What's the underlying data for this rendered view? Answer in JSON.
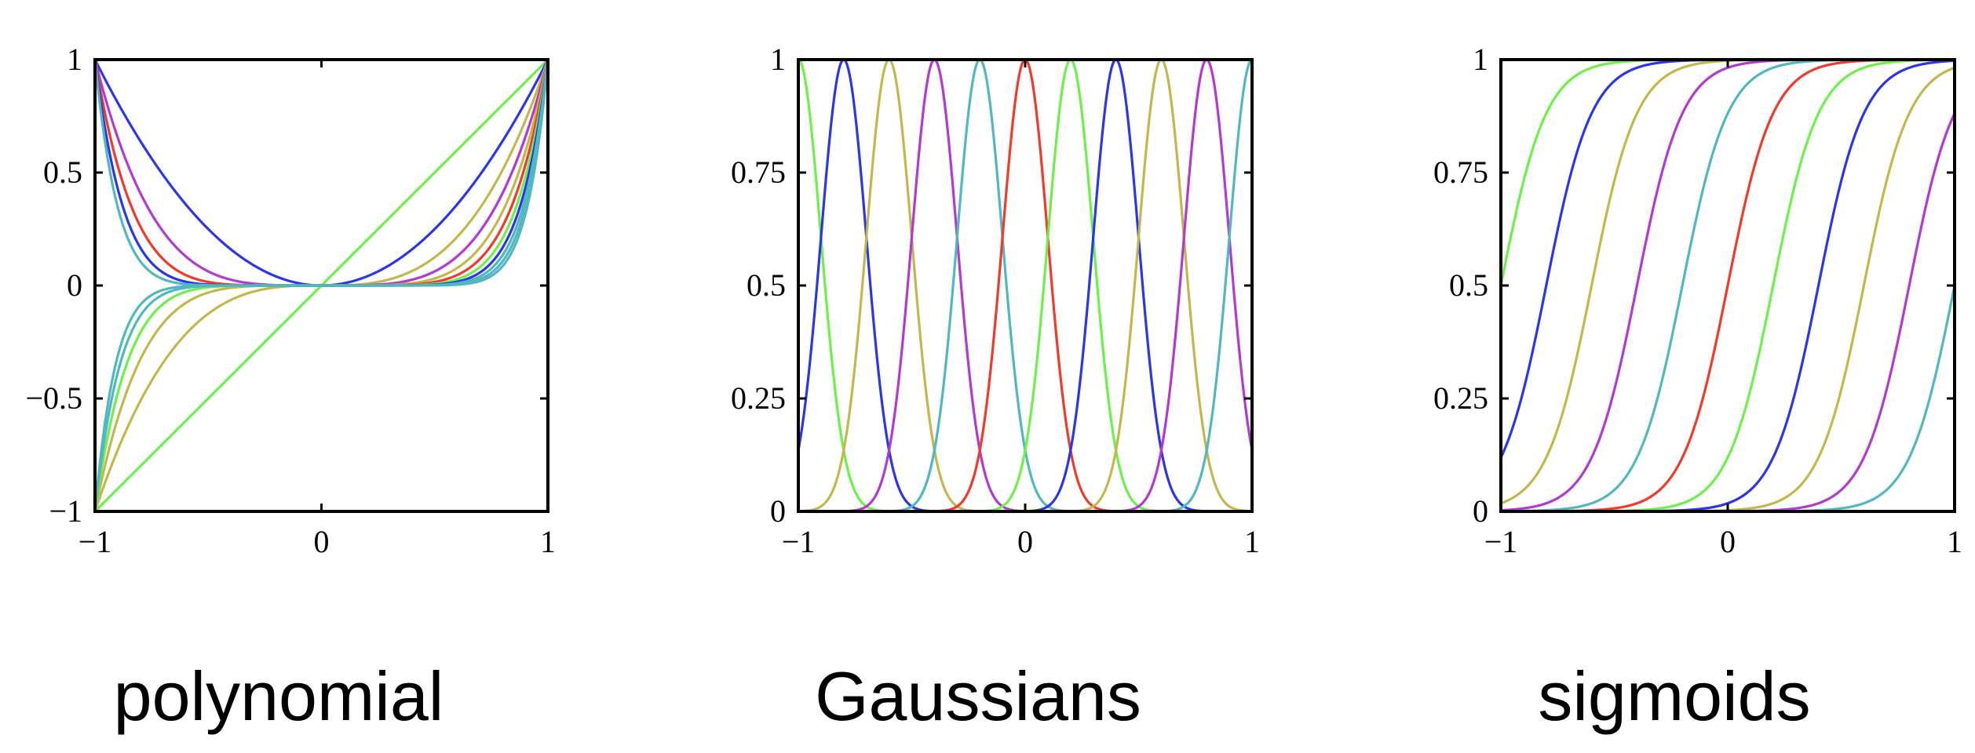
{
  "colors": {
    "green": "#6ef04a",
    "blue": "#2a36e8",
    "olive": "#c2b84c",
    "magenta": "#b23ad0",
    "teal": "#52b8c0",
    "red": "#f03a2a"
  },
  "chart_data": [
    {
      "type": "line",
      "caption": "polynomial",
      "xlim": [
        -1,
        1
      ],
      "ylim": [
        -1,
        1
      ],
      "xticks": [
        -1,
        0,
        1
      ],
      "xtick_labels": [
        "−1",
        "0",
        "1"
      ],
      "yticks": [
        -1,
        -0.5,
        0,
        0.5,
        1
      ],
      "ytick_labels": [
        "−1",
        "−0.5",
        "0",
        "0.5",
        "1"
      ],
      "grid": false,
      "basis": "x^j",
      "series": [
        {
          "power": 1,
          "color": "green"
        },
        {
          "power": 2,
          "color": "blue"
        },
        {
          "power": 3,
          "color": "olive"
        },
        {
          "power": 4,
          "color": "magenta"
        },
        {
          "power": 5,
          "color": "olive"
        },
        {
          "power": 6,
          "color": "red"
        },
        {
          "power": 7,
          "color": "green"
        },
        {
          "power": 8,
          "color": "blue"
        },
        {
          "power": 9,
          "color": "teal"
        },
        {
          "power": 10,
          "color": "teal"
        },
        {
          "power": 11,
          "color": "teal"
        }
      ]
    },
    {
      "type": "line",
      "caption": "Gaussians",
      "xlim": [
        -1,
        1
      ],
      "ylim": [
        0,
        1
      ],
      "xticks": [
        -1,
        0,
        1
      ],
      "xtick_labels": [
        "−1",
        "0",
        "1"
      ],
      "yticks": [
        0,
        0.25,
        0.5,
        0.75,
        1
      ],
      "ytick_labels": [
        "0",
        "0.25",
        "0.5",
        "0.75",
        "1"
      ],
      "grid": false,
      "basis": "exp(-(x-mu)^2/(2 s^2))",
      "width_s": 0.1,
      "series": [
        {
          "mu": -1.0,
          "color": "green"
        },
        {
          "mu": -0.8,
          "color": "blue"
        },
        {
          "mu": -0.6,
          "color": "olive"
        },
        {
          "mu": -0.4,
          "color": "magenta"
        },
        {
          "mu": -0.2,
          "color": "teal"
        },
        {
          "mu": 0.0,
          "color": "red"
        },
        {
          "mu": 0.2,
          "color": "green"
        },
        {
          "mu": 0.4,
          "color": "blue"
        },
        {
          "mu": 0.6,
          "color": "olive"
        },
        {
          "mu": 0.8,
          "color": "magenta"
        },
        {
          "mu": 1.0,
          "color": "teal"
        }
      ]
    },
    {
      "type": "line",
      "caption": "sigmoids",
      "xlim": [
        -1,
        1
      ],
      "ylim": [
        0,
        1
      ],
      "xticks": [
        -1,
        0,
        1
      ],
      "xtick_labels": [
        "−1",
        "0",
        "1"
      ],
      "yticks": [
        0,
        0.25,
        0.5,
        0.75,
        1
      ],
      "ytick_labels": [
        "0",
        "0.25",
        "0.5",
        "0.75",
        "1"
      ],
      "grid": false,
      "basis": "1/(1+exp(-(x-mu)/s))",
      "width_s": 0.1,
      "series": [
        {
          "mu": -1.0,
          "color": "green"
        },
        {
          "mu": -0.8,
          "color": "blue"
        },
        {
          "mu": -0.6,
          "color": "olive"
        },
        {
          "mu": -0.4,
          "color": "magenta"
        },
        {
          "mu": -0.2,
          "color": "teal"
        },
        {
          "mu": 0.0,
          "color": "red"
        },
        {
          "mu": 0.2,
          "color": "green"
        },
        {
          "mu": 0.4,
          "color": "blue"
        },
        {
          "mu": 0.6,
          "color": "olive"
        },
        {
          "mu": 0.8,
          "color": "magenta"
        },
        {
          "mu": 1.0,
          "color": "teal"
        }
      ]
    }
  ]
}
